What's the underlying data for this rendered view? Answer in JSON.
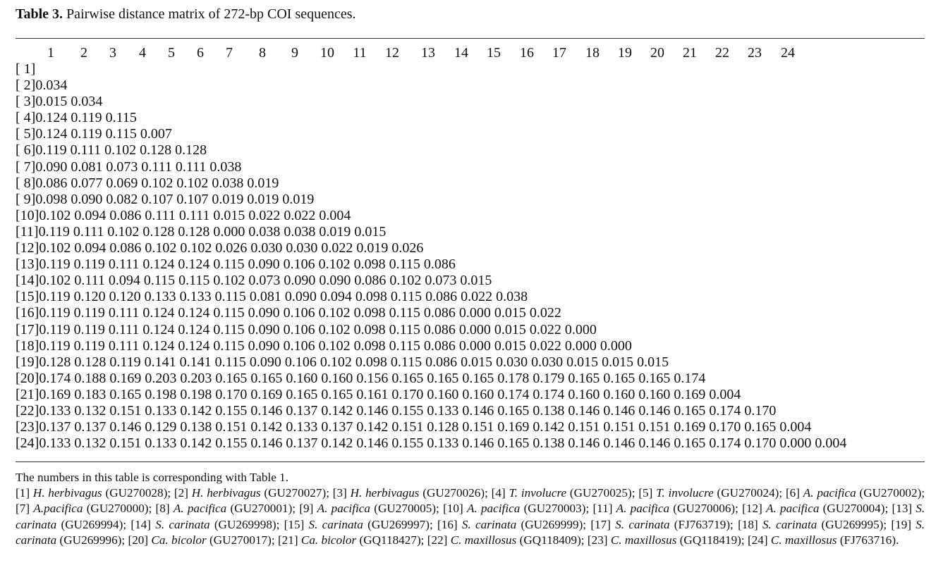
{
  "header": {
    "label": "Table 3.",
    "title": "Pairwise distance matrix of 272-bp COI sequences."
  },
  "table": {
    "columns": [
      "1",
      "2",
      "3",
      "4",
      "5",
      "6",
      "7",
      "8",
      "9",
      "10",
      "11",
      "12",
      "13",
      "14",
      "15",
      "16",
      "17",
      "18",
      "19",
      "20",
      "21",
      "22",
      "23",
      "24"
    ],
    "rows": [
      {
        "label": "[ 1]",
        "values": []
      },
      {
        "label": "[ 2]",
        "values": [
          "0.034"
        ]
      },
      {
        "label": "[ 3]",
        "values": [
          "0.015",
          "0.034"
        ]
      },
      {
        "label": "[ 4]",
        "values": [
          "0.124",
          "0.119",
          "0.115"
        ]
      },
      {
        "label": "[ 5]",
        "values": [
          "0.124",
          "0.119",
          "0.115",
          "0.007"
        ]
      },
      {
        "label": "[ 6]",
        "values": [
          "0.119",
          "0.111",
          "0.102",
          "0.128",
          "0.128"
        ]
      },
      {
        "label": "[ 7]",
        "values": [
          "0.090",
          "0.081",
          "0.073",
          "0.111",
          "0.111",
          "0.038"
        ]
      },
      {
        "label": "[ 8]",
        "values": [
          "0.086",
          "0.077",
          "0.069",
          "0.102",
          "0.102",
          "0.038",
          "0.019"
        ]
      },
      {
        "label": "[ 9]",
        "values": [
          "0.098",
          "0.090",
          "0.082",
          "0.107",
          "0.107",
          "0.019",
          "0.019",
          "0.019"
        ]
      },
      {
        "label": "[10]",
        "values": [
          "0.102",
          "0.094",
          "0.086",
          "0.111",
          "0.111",
          "0.015",
          "0.022",
          "0.022",
          "0.004"
        ]
      },
      {
        "label": "[11]",
        "values": [
          "0.119",
          "0.111",
          "0.102",
          "0.128",
          "0.128",
          "0.000",
          "0.038",
          "0.038",
          "0.019",
          "0.015"
        ]
      },
      {
        "label": "[12]",
        "values": [
          "0.102",
          "0.094",
          "0.086",
          "0.102",
          "0.102",
          "0.026",
          "0.030",
          "0.030",
          "0.022",
          "0.019",
          "0.026"
        ]
      },
      {
        "label": "[13]",
        "values": [
          "0.119",
          "0.119",
          "0.111",
          "0.124",
          "0.124",
          "0.115",
          "0.090",
          "0.106",
          "0.102",
          "0.098",
          "0.115",
          "0.086"
        ]
      },
      {
        "label": "[14]",
        "values": [
          "0.102",
          "0.111",
          "0.094",
          "0.115",
          "0.115",
          "0.102",
          "0.073",
          "0.090",
          "0.090",
          "0.086",
          "0.102",
          "0.073",
          "0.015"
        ]
      },
      {
        "label": "[15]",
        "values": [
          "0.119",
          "0.120",
          "0.120",
          "0.133",
          "0.133",
          "0.115",
          "0.081",
          "0.090",
          "0.094",
          "0.098",
          "0.115",
          "0.086",
          "0.022",
          "0.038"
        ]
      },
      {
        "label": "[16]",
        "values": [
          "0.119",
          "0.119",
          "0.111",
          "0.124",
          "0.124",
          "0.115",
          "0.090",
          "0.106",
          "0.102",
          "0.098",
          "0.115",
          "0.086",
          "0.000",
          "0.015",
          "0.022"
        ]
      },
      {
        "label": "[17]",
        "values": [
          "0.119",
          "0.119",
          "0.111",
          "0.124",
          "0.124",
          "0.115",
          "0.090",
          "0.106",
          "0.102",
          "0.098",
          "0.115",
          "0.086",
          "0.000",
          "0.015",
          "0.022",
          "0.000"
        ]
      },
      {
        "label": "[18]",
        "values": [
          "0.119",
          "0.119",
          "0.111",
          "0.124",
          "0.124",
          "0.115",
          "0.090",
          "0.106",
          "0.102",
          "0.098",
          "0.115",
          "0.086",
          "0.000",
          "0.015",
          "0.022",
          "0.000",
          "0.000"
        ]
      },
      {
        "label": "[19]",
        "values": [
          "0.128",
          "0.128",
          "0.119",
          "0.141",
          "0.141",
          "0.115",
          "0.090",
          "0.106",
          "0.102",
          "0.098",
          "0.115",
          "0.086",
          "0.015",
          "0.030",
          "0.030",
          "0.015",
          "0.015",
          "0.015"
        ]
      },
      {
        "label": "[20]",
        "values": [
          "0.174",
          "0.188",
          "0.169",
          "0.203",
          "0.203",
          "0.165",
          "0.165",
          "0.160",
          "0.160",
          "0.156",
          "0.165",
          "0.165",
          "0.165",
          "0.178",
          "0.179",
          "0.165",
          "0.165",
          "0.165",
          "0.174"
        ]
      },
      {
        "label": "[21]",
        "values": [
          "0.169",
          "0.183",
          "0.165",
          "0.198",
          "0.198",
          "0.170",
          "0.169",
          "0.165",
          "0.165",
          "0.161",
          "0.170",
          "0.160",
          "0.160",
          "0.174",
          "0.174",
          "0.160",
          "0.160",
          "0.160",
          "0.169",
          "0.004"
        ]
      },
      {
        "label": "[22]",
        "values": [
          "0.133",
          "0.132",
          "0.151",
          "0.133",
          "0.142",
          "0.155",
          "0.146",
          "0.137",
          "0.142",
          "0.146",
          "0.155",
          "0.133",
          "0.146",
          "0.165",
          "0.138",
          "0.146",
          "0.146",
          "0.146",
          "0.165",
          "0.174",
          "0.170"
        ]
      },
      {
        "label": "[23]",
        "values": [
          "0.137",
          "0.137",
          "0.146",
          "0.129",
          "0.138",
          "0.151",
          "0.142",
          "0.133",
          "0.137",
          "0.142",
          "0.151",
          "0.128",
          "0.151",
          "0.169",
          "0.142",
          "0.151",
          "0.151",
          "0.151",
          "0.169",
          "0.170",
          "0.165",
          "0.004"
        ]
      },
      {
        "label": "[24]",
        "values": [
          "0.133",
          "0.132",
          "0.151",
          "0.133",
          "0.142",
          "0.155",
          "0.146",
          "0.137",
          "0.142",
          "0.146",
          "0.155",
          "0.133",
          "0.146",
          "0.165",
          "0.138",
          "0.146",
          "0.146",
          "0.146",
          "0.165",
          "0.174",
          "0.170",
          "0.000",
          "0.004"
        ]
      }
    ]
  },
  "notes": {
    "text": "The numbers in this table is corresponding with Table 1.",
    "legend": [
      {
        "id": "[1]",
        "species": "H. herbivagus",
        "accession": "(GU270028);"
      },
      {
        "id": "[2]",
        "species": "H. herbivagus",
        "accession": "(GU270027);"
      },
      {
        "id": "[3]",
        "species": "H. herbivagus",
        "accession": "(GU270026);"
      },
      {
        "id": "[4]",
        "species": "T. involucre",
        "accession": "(GU270025);"
      },
      {
        "id": "[5]",
        "species": "T. involucre",
        "accession": "(GU270024);"
      },
      {
        "id": "[6]",
        "species": "A. pacifica",
        "accession": "(GU270002);"
      },
      {
        "id": "[7]",
        "species": "A.pacifica",
        "accession": "(GU270000);"
      },
      {
        "id": "[8]",
        "species": "A. pacifica",
        "accession": "(GU270001);"
      },
      {
        "id": "[9]",
        "species": "A. pacifica",
        "accession": "(GU270005);"
      },
      {
        "id": "[10]",
        "species": "A. pacifica",
        "accession": "(GU270003);"
      },
      {
        "id": "[11]",
        "species": "A. pacifica",
        "accession": "(GU270006);"
      },
      {
        "id": "[12]",
        "species": "A. pacifica",
        "accession": "(GU270004);"
      },
      {
        "id": "[13]",
        "species": "S. carinata",
        "accession": "(GU269994);"
      },
      {
        "id": "[14]",
        "species": "S. carinata",
        "accession": "(GU269998);"
      },
      {
        "id": "[15]",
        "species": "S. carinata",
        "accession": "(GU269997);"
      },
      {
        "id": "[16]",
        "species": "S. carinata",
        "accession": "(GU269999);"
      },
      {
        "id": "[17]",
        "species": "S. carinata",
        "accession": "(FJ763719);"
      },
      {
        "id": "[18]",
        "species": "S. carinata",
        "accession": "(GU269995);"
      },
      {
        "id": "[19]",
        "species": "S. carinata",
        "accession": "(GU269996);"
      },
      {
        "id": "[20]",
        "species": "Ca. bicolor",
        "accession": "(GU270017);"
      },
      {
        "id": "[21]",
        "species": "Ca. bicolor",
        "accession": "(GQ118427);"
      },
      {
        "id": "[22]",
        "species": "C. maxillosus",
        "accession": "(GQ118409);"
      },
      {
        "id": "[23]",
        "species": "C. maxillosus",
        "accession": "(GQ118419);"
      },
      {
        "id": "[24]",
        "species": "C. maxillosus",
        "accession": "(FJ763716)."
      }
    ]
  }
}
